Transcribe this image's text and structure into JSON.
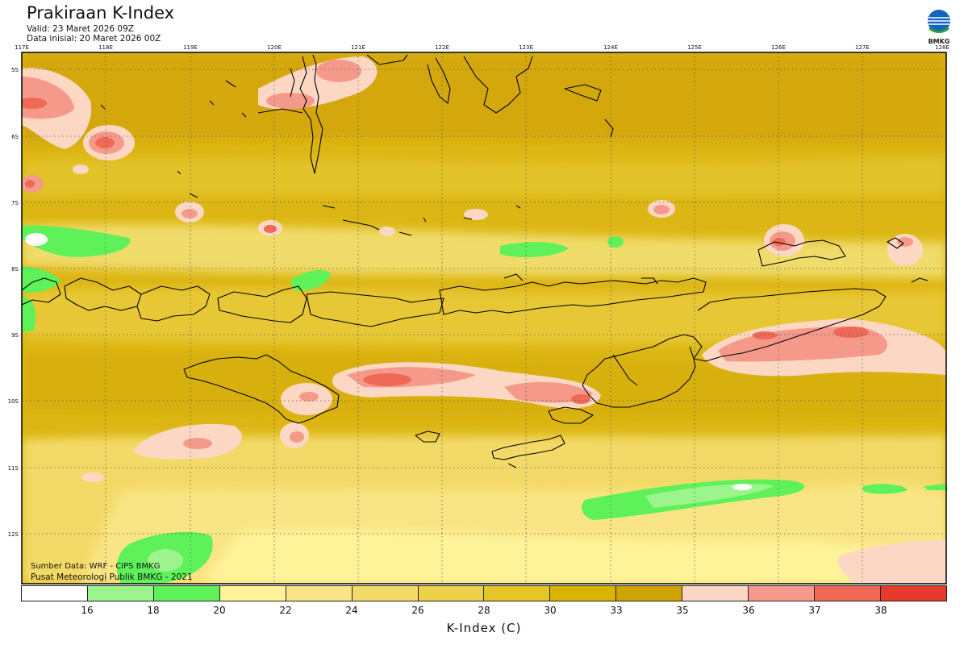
{
  "header": {
    "title": "Prakiraan K-Index",
    "valid": "Valid: 23 Maret 2026 09Z",
    "initial": "Data inisial: 20 Maret 2026 00Z",
    "logo_text": "BMKG"
  },
  "map": {
    "lon_labels": [
      "117E",
      "118E",
      "119E",
      "120E",
      "121E",
      "122E",
      "123E",
      "124E",
      "125E",
      "126E",
      "127E",
      "128E"
    ],
    "lat_labels": [
      "5S",
      "6S",
      "7S",
      "8S",
      "9S",
      "10S",
      "11S",
      "12S"
    ]
  },
  "footer": {
    "source": "Sumber Data: WRF - CIPS BMKG",
    "center": "Pusat Meteorologi Publik BMKG - 2021"
  },
  "legend": {
    "colors": [
      "#ffffff",
      "#9cf58c",
      "#5ef15a",
      "#fff39a",
      "#f9e585",
      "#f3da67",
      "#ecd048",
      "#e6c526",
      "#d9b400",
      "#cfa400",
      "#fcd8c4",
      "#f59a8a",
      "#ef6956",
      "#e8392a"
    ],
    "ticks": [
      "16",
      "18",
      "20",
      "22",
      "24",
      "26",
      "28",
      "30",
      "33",
      "35",
      "36",
      "37",
      "38"
    ],
    "unit": "K-Index (C)"
  }
}
